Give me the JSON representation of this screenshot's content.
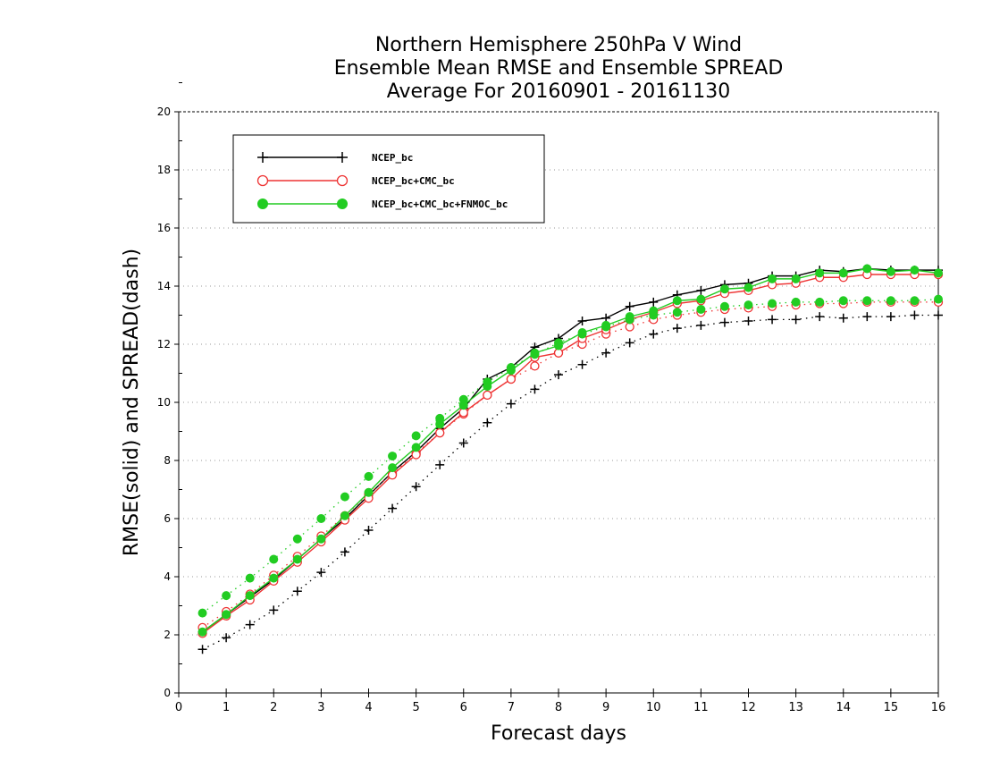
{
  "chart_data": {
    "type": "line",
    "title": [
      "Northern Hemisphere 250hPa V Wind",
      "Ensemble Mean RMSE and Ensemble SPREAD",
      "Average For 20160901 - 20161130"
    ],
    "xlabel": "Forecast days",
    "ylabel": "RMSE(solid) and SPREAD(dash)",
    "xlim": [
      0,
      16
    ],
    "ylim": [
      0,
      20
    ],
    "xticks": [
      0,
      1,
      2,
      3,
      4,
      5,
      6,
      7,
      8,
      9,
      10,
      11,
      12,
      13,
      14,
      15,
      16
    ],
    "yticks": [
      0,
      2,
      4,
      6,
      8,
      10,
      12,
      14,
      16,
      18,
      20
    ],
    "grid": "horizontal dotted",
    "legend_position": "top-left",
    "x": [
      0.5,
      1,
      1.5,
      2,
      2.5,
      3,
      3.5,
      4,
      4.5,
      5,
      5.5,
      6,
      6.5,
      7,
      7.5,
      8,
      8.5,
      9,
      9.5,
      10,
      10.5,
      11,
      11.5,
      12,
      12.5,
      13,
      13.5,
      14,
      14.5,
      15,
      15.5,
      16
    ],
    "series": [
      {
        "name": "NCEP_bc",
        "color": "#000000",
        "marker": "plus",
        "rmse": [
          2.1,
          2.7,
          3.3,
          3.9,
          4.6,
          5.3,
          6.0,
          6.8,
          7.6,
          8.3,
          9.1,
          9.8,
          10.8,
          11.2,
          11.9,
          12.2,
          12.8,
          12.9,
          13.3,
          13.45,
          13.7,
          13.85,
          14.05,
          14.1,
          14.35,
          14.35,
          14.55,
          14.5,
          14.6,
          14.55,
          14.55,
          14.55
        ],
        "spread": [
          1.5,
          1.9,
          2.35,
          2.85,
          3.5,
          4.15,
          4.85,
          5.6,
          6.35,
          7.1,
          7.85,
          8.6,
          9.3,
          9.95,
          10.45,
          10.95,
          11.3,
          11.7,
          12.05,
          12.35,
          12.55,
          12.65,
          12.75,
          12.8,
          12.85,
          12.85,
          12.95,
          12.9,
          12.95,
          12.95,
          13.0,
          13.0
        ]
      },
      {
        "name": "NCEP_bc+CMC_bc",
        "color": "#ee3333",
        "marker": "open-circle",
        "rmse": [
          2.05,
          2.65,
          3.2,
          3.85,
          4.5,
          5.2,
          5.95,
          6.7,
          7.5,
          8.2,
          8.95,
          9.65,
          10.25,
          10.8,
          11.55,
          11.7,
          12.2,
          12.5,
          12.85,
          13.1,
          13.4,
          13.5,
          13.75,
          13.85,
          14.05,
          14.1,
          14.3,
          14.3,
          14.4,
          14.4,
          14.4,
          14.4
        ],
        "spread": [
          2.25,
          2.8,
          3.4,
          4.05,
          4.7,
          5.4,
          6.1,
          6.85,
          7.55,
          8.25,
          8.95,
          9.6,
          10.25,
          10.8,
          11.25,
          11.7,
          12.0,
          12.35,
          12.6,
          12.85,
          13.0,
          13.1,
          13.2,
          13.25,
          13.3,
          13.35,
          13.4,
          13.4,
          13.45,
          13.45,
          13.45,
          13.45
        ]
      },
      {
        "name": "NCEP_bc+CMC_bc+FNMOC_bc",
        "color": "#22cc22",
        "marker": "filled-circle",
        "rmse": [
          2.1,
          2.7,
          3.35,
          3.95,
          4.6,
          5.3,
          6.1,
          6.9,
          7.75,
          8.45,
          9.25,
          9.9,
          10.55,
          11.1,
          11.7,
          11.95,
          12.4,
          12.65,
          12.95,
          13.15,
          13.5,
          13.55,
          13.9,
          13.95,
          14.25,
          14.25,
          14.45,
          14.45,
          14.6,
          14.5,
          14.55,
          14.45
        ],
        "spread": [
          2.75,
          3.35,
          3.95,
          4.6,
          5.3,
          6.0,
          6.75,
          7.45,
          8.15,
          8.85,
          9.45,
          10.1,
          10.7,
          11.2,
          11.65,
          12.05,
          12.35,
          12.6,
          12.85,
          13.0,
          13.1,
          13.2,
          13.3,
          13.35,
          13.4,
          13.45,
          13.45,
          13.5,
          13.5,
          13.5,
          13.5,
          13.55
        ]
      }
    ]
  }
}
